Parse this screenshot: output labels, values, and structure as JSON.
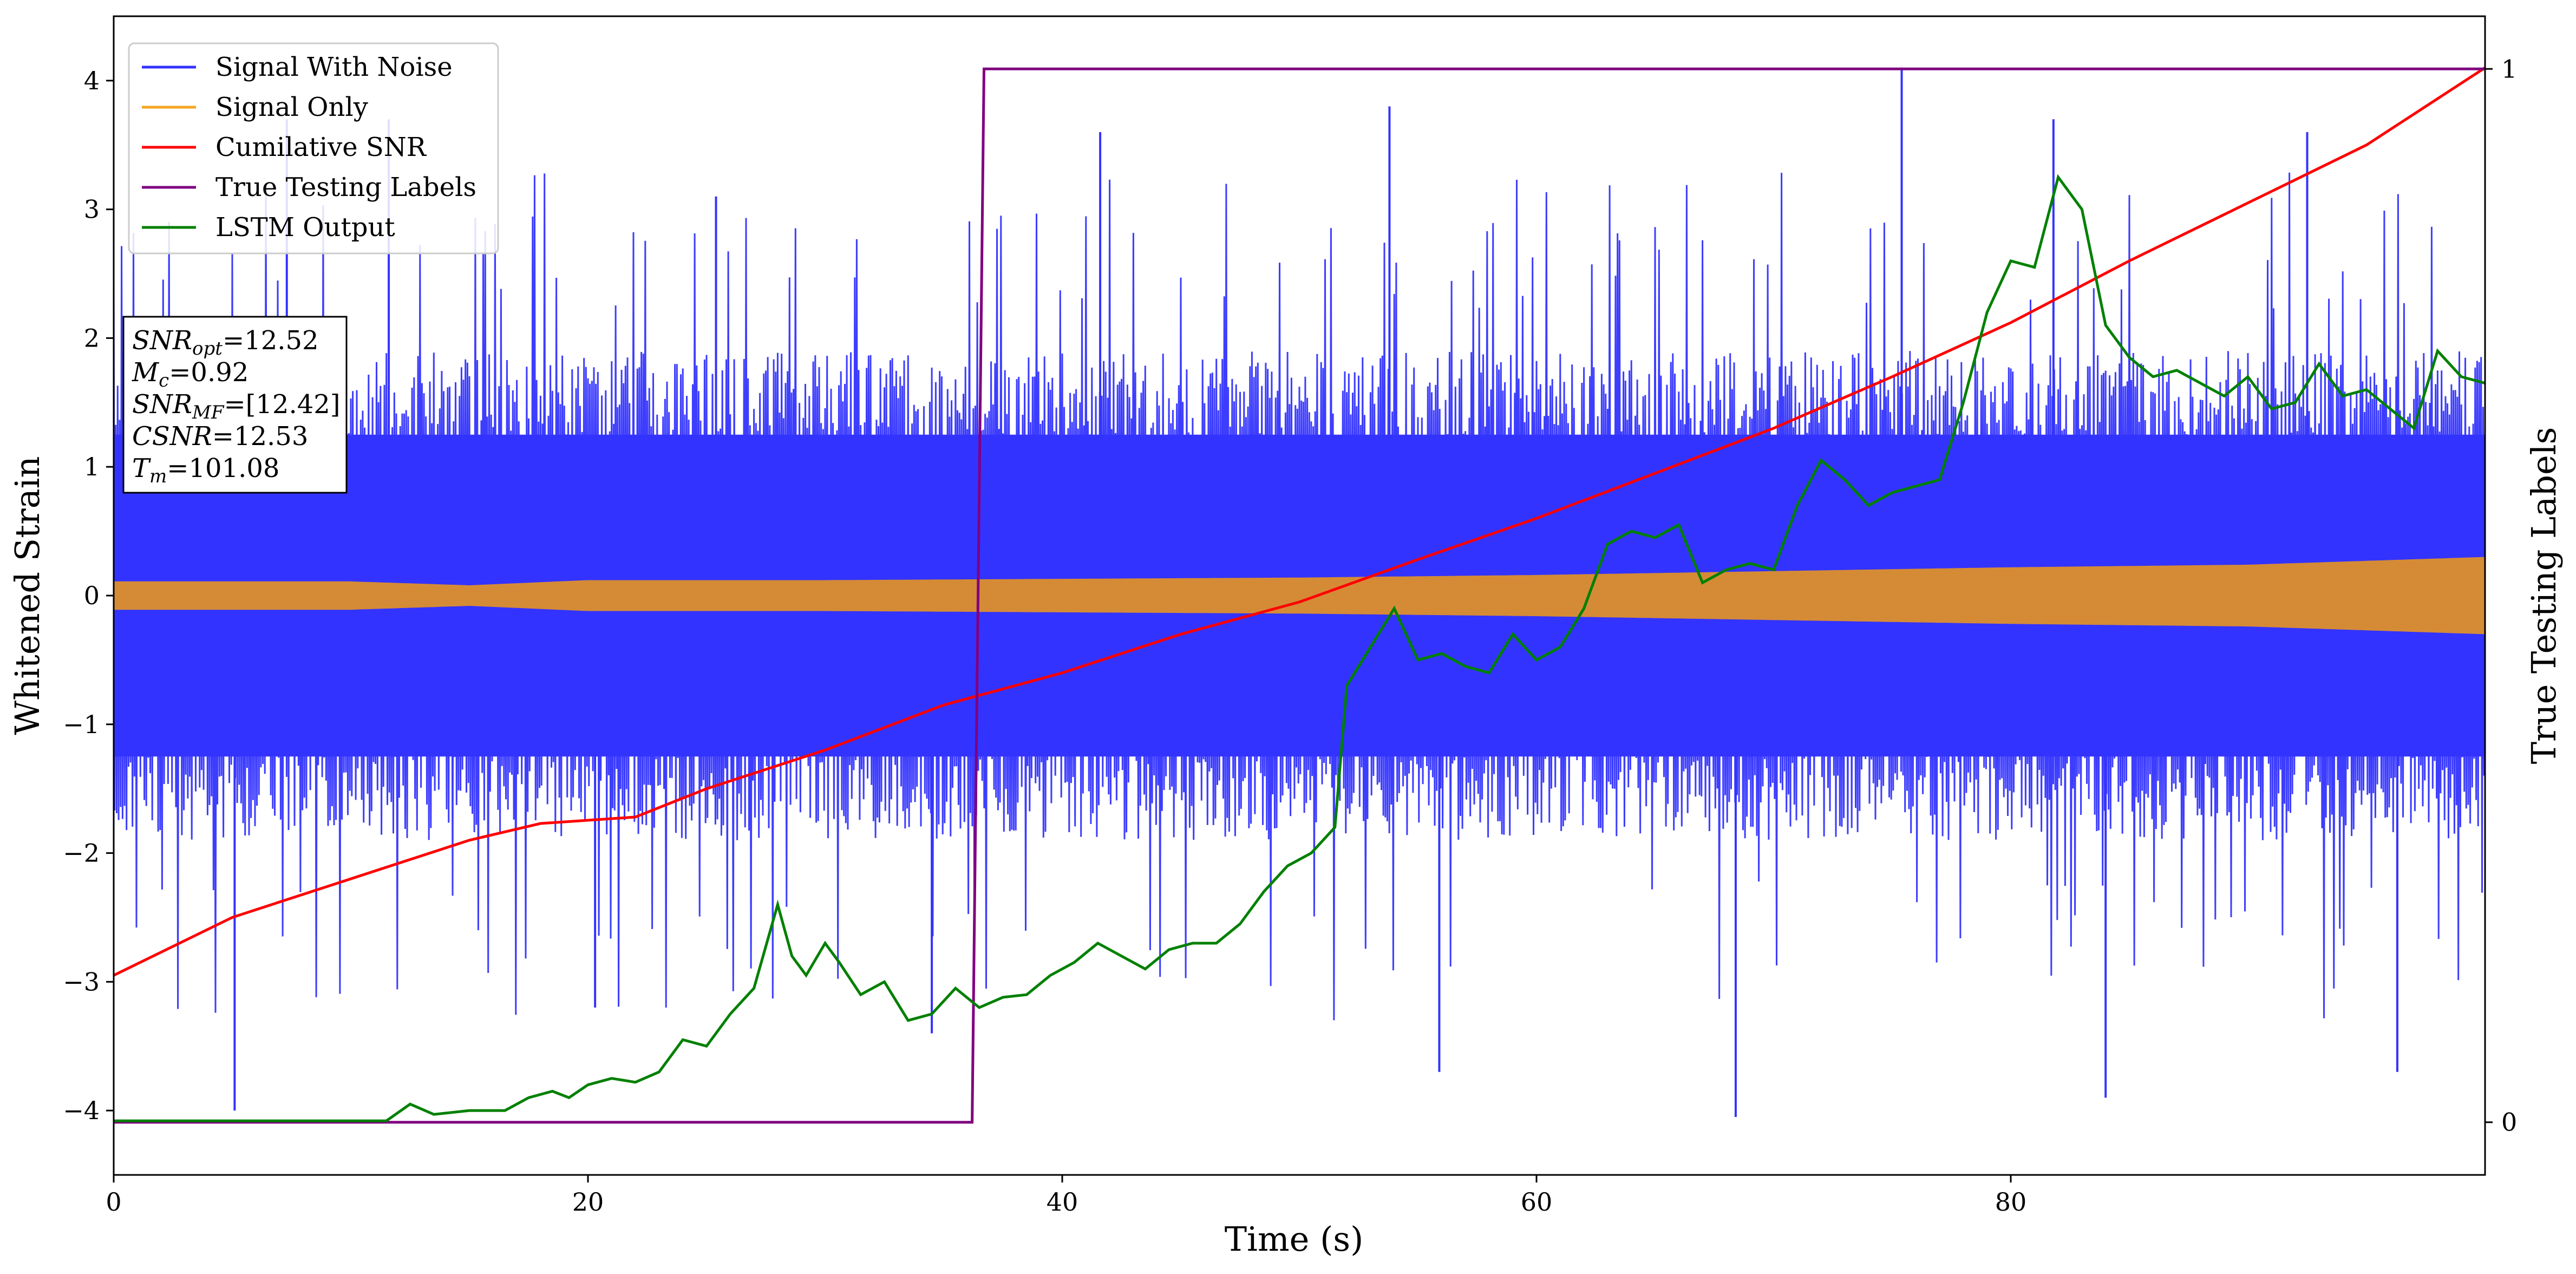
{
  "chart_data": {
    "type": "line",
    "xlabel": "Time (s)",
    "ylabel": "Whitened Strain",
    "ylabel_right": "True Testing Labels",
    "xlim": [
      0,
      100
    ],
    "ylim": [
      -4.5,
      4.5
    ],
    "ylim_right": [
      -0.05,
      1.05
    ],
    "x_ticks": [
      "0",
      "20",
      "40",
      "60",
      "80"
    ],
    "x_tick_values": [
      0,
      20,
      40,
      60,
      80
    ],
    "y_ticks": [
      "−4",
      "−3",
      "−2",
      "−1",
      "0",
      "1",
      "2",
      "3",
      "4"
    ],
    "y_tick_values": [
      -4,
      -3,
      -2,
      -1,
      0,
      1,
      2,
      3,
      4
    ],
    "y_right_ticks": [
      "0",
      "1"
    ],
    "y_right_tick_values": [
      0,
      1
    ],
    "grid": false,
    "legend_position": "top-left",
    "legend": [
      {
        "label": "Signal With Noise",
        "color": "#3333ff"
      },
      {
        "label": "Signal Only",
        "color": "#f5a623"
      },
      {
        "label": "Cumilative SNR",
        "color": "#ff0000"
      },
      {
        "label": "True Testing Labels",
        "color": "#800080"
      },
      {
        "label": "LSTM Output",
        "color": "#008000"
      }
    ],
    "annotation": [
      {
        "base": "SNR",
        "sub": "opt",
        "value": "=12.52"
      },
      {
        "base": "M",
        "sub": "c",
        "value": "=0.92"
      },
      {
        "base": "SNR",
        "sub": "MF",
        "value": "=[12.42]"
      },
      {
        "base": "CSNR",
        "sub": "",
        "value": "=12.53"
      },
      {
        "base": "T",
        "sub": "m",
        "value": "=101.08"
      }
    ],
    "series": [
      {
        "name": "Signal With Noise",
        "color": "#3333ff",
        "axis": "left",
        "dense_noise_band": [
          -1.9,
          1.9
        ],
        "spikes": [
          [
            5.1,
            -4.0
          ],
          [
            7.3,
            3.7
          ],
          [
            11.6,
            3.7
          ],
          [
            20.3,
            -3.2
          ],
          [
            25.4,
            3.1
          ],
          [
            34.5,
            -3.4
          ],
          [
            41.6,
            3.6
          ],
          [
            53.8,
            3.8
          ],
          [
            55.9,
            -3.7
          ],
          [
            68.4,
            -4.05
          ],
          [
            75.4,
            4.1
          ],
          [
            81.8,
            3.7
          ],
          [
            84.0,
            -3.9
          ],
          [
            92.5,
            3.6
          ],
          [
            96.3,
            -3.7
          ]
        ]
      },
      {
        "name": "Signal Only",
        "color": "#d58b36",
        "axis": "left",
        "envelope_x": [
          0,
          10,
          15,
          20,
          30,
          40,
          50,
          60,
          70,
          80,
          90,
          95,
          100
        ],
        "envelope_amp": [
          0.11,
          0.11,
          0.08,
          0.12,
          0.12,
          0.13,
          0.14,
          0.16,
          0.19,
          0.22,
          0.24,
          0.27,
          0.3
        ]
      },
      {
        "name": "Cumilative SNR",
        "color": "#ff0000",
        "axis": "left",
        "x": [
          0,
          5,
          10,
          15,
          18,
          22,
          25,
          30,
          35,
          40,
          45,
          50,
          55,
          60,
          65,
          70,
          75,
          80,
          85,
          90,
          95,
          100
        ],
        "y": [
          -2.95,
          -2.5,
          -2.2,
          -1.9,
          -1.77,
          -1.72,
          -1.5,
          -1.2,
          -0.85,
          -0.6,
          -0.3,
          -0.05,
          0.28,
          0.6,
          0.95,
          1.3,
          1.7,
          2.12,
          2.6,
          3.05,
          3.5,
          4.1
        ]
      },
      {
        "name": "True Testing Labels",
        "color": "#800080",
        "axis": "right",
        "x": [
          0,
          36.2,
          36.7,
          100
        ],
        "y": [
          0,
          0,
          1,
          1
        ]
      },
      {
        "name": "LSTM Output",
        "color": "#008000",
        "axis": "left",
        "x": [
          0,
          11.5,
          12.5,
          13.5,
          15,
          16.5,
          17.5,
          18.5,
          19.2,
          20,
          21,
          22,
          23,
          24,
          25,
          26,
          27,
          28,
          28.6,
          29.2,
          30,
          30.6,
          31.5,
          32.5,
          33.5,
          34.5,
          35.5,
          36.5,
          37.5,
          38.5,
          39.5,
          40.5,
          41.5,
          42.5,
          43.5,
          44.5,
          45.5,
          46.5,
          47.5,
          48.5,
          49.5,
          50.5,
          51,
          51.5,
          52,
          53,
          54,
          55,
          56,
          57,
          58,
          59,
          60,
          61,
          62,
          63,
          64,
          65,
          66,
          67,
          68,
          69,
          70,
          71,
          72,
          73,
          74,
          75,
          76,
          77,
          78,
          79,
          80,
          81,
          82,
          83,
          84,
          85,
          86,
          87,
          88,
          89,
          90,
          91,
          92,
          93,
          94,
          95,
          96,
          97,
          98,
          99,
          100
        ],
        "y": [
          -4.08,
          -4.08,
          -3.95,
          -4.03,
          -4.0,
          -4.0,
          -3.9,
          -3.85,
          -3.9,
          -3.8,
          -3.75,
          -3.78,
          -3.7,
          -3.45,
          -3.5,
          -3.25,
          -3.05,
          -2.4,
          -2.8,
          -2.95,
          -2.7,
          -2.85,
          -3.1,
          -3.0,
          -3.3,
          -3.25,
          -3.05,
          -3.2,
          -3.12,
          -3.1,
          -2.95,
          -2.85,
          -2.7,
          -2.8,
          -2.9,
          -2.75,
          -2.7,
          -2.7,
          -2.55,
          -2.3,
          -2.1,
          -2.0,
          -1.9,
          -1.8,
          -0.7,
          -0.4,
          -0.1,
          -0.5,
          -0.45,
          -0.55,
          -0.6,
          -0.3,
          -0.5,
          -0.4,
          -0.1,
          0.4,
          0.5,
          0.45,
          0.55,
          0.1,
          0.2,
          0.25,
          0.2,
          0.7,
          1.05,
          0.9,
          0.7,
          0.8,
          0.85,
          0.9,
          1.5,
          2.2,
          2.6,
          2.55,
          3.25,
          3.0,
          2.1,
          1.85,
          1.7,
          1.75,
          1.65,
          1.55,
          1.7,
          1.45,
          1.5,
          1.8,
          1.55,
          1.6,
          1.45,
          1.3,
          1.9,
          1.7,
          1.65
        ]
      }
    ]
  }
}
